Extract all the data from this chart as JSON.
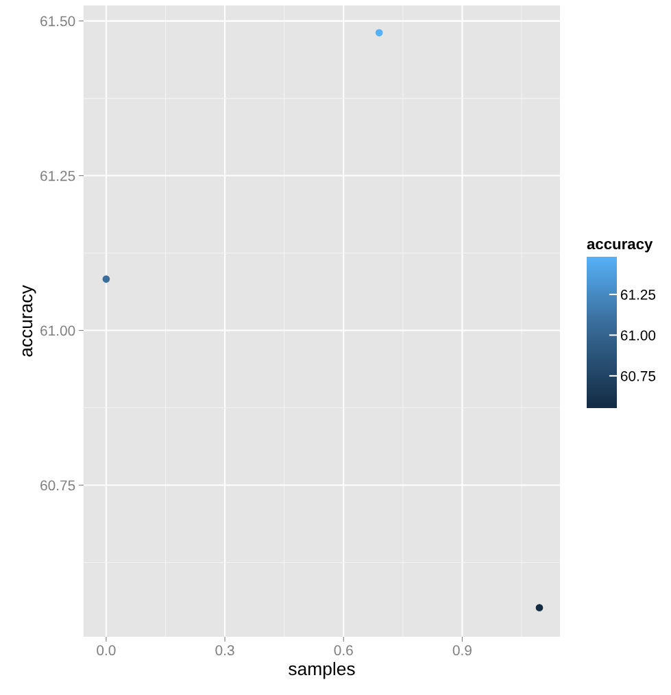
{
  "chart_data": {
    "type": "scatter",
    "xlabel": "samples",
    "ylabel": "accuracy",
    "clabel": "accuracy",
    "x": [
      0.0,
      0.69,
      1.095
    ],
    "values": [
      61.083,
      61.481,
      60.552
    ],
    "cvalues": [
      61.083,
      61.481,
      60.552
    ],
    "colors": [
      "#3A6E9C",
      "#56B1F7",
      "#132B43"
    ],
    "clim": [
      60.552,
      61.481
    ],
    "cticks": [
      {
        "value": 60.75,
        "label": "60.75"
      },
      {
        "value": 61.0,
        "label": "61.00"
      },
      {
        "value": 61.25,
        "label": "61.25"
      }
    ],
    "xlim": [
      -0.057,
      1.147
    ],
    "xticks": [
      {
        "value": 0.0,
        "label": "0.0"
      },
      {
        "value": 0.3,
        "label": "0.3"
      },
      {
        "value": 0.6,
        "label": "0.6"
      },
      {
        "value": 0.9,
        "label": "0.9"
      }
    ],
    "ylim": [
      60.505,
      61.525
    ],
    "yticks": [
      {
        "value": 60.75,
        "label": "60.75"
      },
      {
        "value": 61.0,
        "label": "61.00"
      },
      {
        "value": 61.25,
        "label": "61.25"
      },
      {
        "value": 61.5,
        "label": "61.50"
      }
    ],
    "grid": true,
    "marker": "circle"
  }
}
